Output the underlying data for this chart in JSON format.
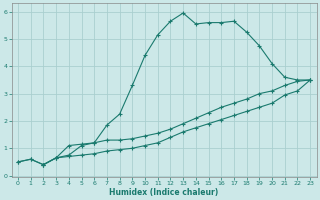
{
  "xlabel": "Humidex (Indice chaleur)",
  "background_color": "#cce8e8",
  "grid_color": "#aacfcf",
  "line_color": "#1a7a6e",
  "xlim": [
    -0.5,
    23.5
  ],
  "ylim": [
    -0.05,
    6.3
  ],
  "xticks": [
    0,
    1,
    2,
    3,
    4,
    5,
    6,
    7,
    8,
    9,
    10,
    11,
    12,
    13,
    14,
    15,
    16,
    17,
    18,
    19,
    20,
    21,
    22,
    23
  ],
  "yticks": [
    0,
    1,
    2,
    3,
    4,
    5,
    6
  ],
  "line1_x": [
    0,
    1,
    2,
    3,
    4,
    5,
    6,
    7,
    8,
    9,
    10,
    11,
    12,
    13,
    14,
    15,
    16,
    17,
    18,
    19,
    20,
    21,
    22,
    23
  ],
  "line1_y": [
    0.5,
    0.6,
    0.4,
    0.65,
    0.7,
    0.75,
    0.8,
    0.9,
    0.95,
    1.0,
    1.1,
    1.2,
    1.4,
    1.6,
    1.75,
    1.9,
    2.05,
    2.2,
    2.35,
    2.5,
    2.65,
    2.95,
    3.1,
    3.5
  ],
  "line2_x": [
    0,
    1,
    2,
    3,
    4,
    5,
    6,
    7,
    8,
    9,
    10,
    11,
    12,
    13,
    14,
    15,
    16,
    17,
    18,
    19,
    20,
    21,
    22,
    23
  ],
  "line2_y": [
    0.5,
    0.6,
    0.4,
    0.65,
    0.75,
    1.1,
    1.2,
    1.3,
    1.3,
    1.35,
    1.45,
    1.55,
    1.7,
    1.9,
    2.1,
    2.3,
    2.5,
    2.65,
    2.8,
    3.0,
    3.1,
    3.3,
    3.45,
    3.5
  ],
  "line3_x": [
    2,
    3,
    4,
    5,
    6,
    7,
    8,
    9,
    10,
    11,
    12,
    13,
    14,
    15,
    16,
    17,
    18,
    19,
    20,
    21,
    22,
    23
  ],
  "line3_y": [
    0.4,
    0.65,
    1.1,
    1.15,
    1.2,
    1.85,
    2.25,
    3.3,
    4.4,
    5.15,
    5.65,
    5.95,
    5.55,
    5.6,
    5.6,
    5.65,
    5.25,
    4.75,
    4.1,
    3.6,
    3.5,
    3.5
  ]
}
